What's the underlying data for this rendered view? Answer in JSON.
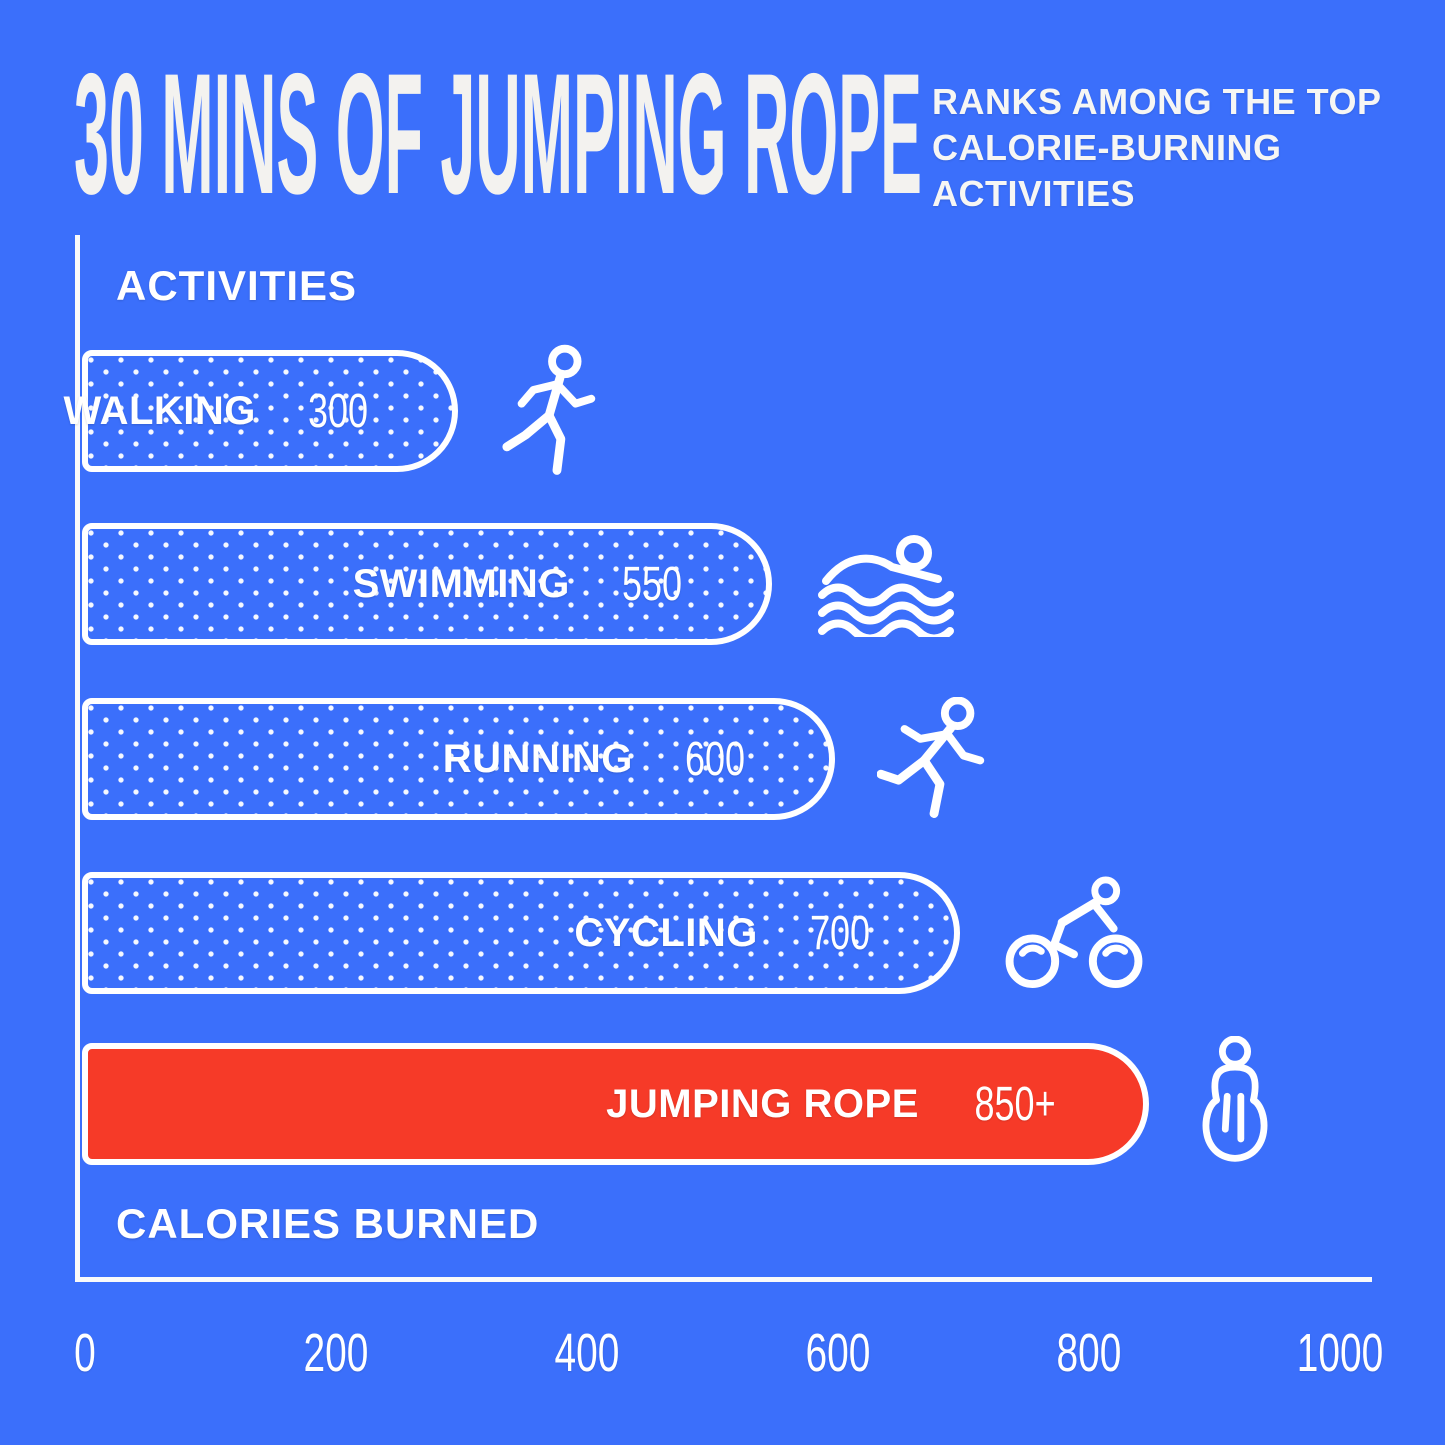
{
  "chart_data": {
    "type": "bar",
    "orientation": "horizontal",
    "title": "30 MINS OF JUMPING ROPE",
    "subtitle": "RANKS AMONG THE TOP CALORIE-BURNING ACTIVITIES",
    "subtitle_lines": [
      "RANKS AMONG THE TOP",
      "CALORIE-BURNING",
      "ACTIVITIES"
    ],
    "ylabel": "ACTIVITIES",
    "xlabel": "CALORIES BURNED",
    "xlim": [
      0,
      1000
    ],
    "xticks": [
      "0",
      "200",
      "400",
      "600",
      "800",
      "1000"
    ],
    "grid": false,
    "legend": false,
    "categories": [
      "WALKING",
      "SWIMMING",
      "RUNNING",
      "CYCLING",
      "JUMPING ROPE"
    ],
    "values": [
      300,
      550,
      600,
      700,
      850
    ],
    "bars": [
      {
        "label": "WALKING",
        "value": 300,
        "display_value": "300",
        "fill": "dotted",
        "icon": "walking-person-icon"
      },
      {
        "label": "SWIMMING",
        "value": 550,
        "display_value": "550",
        "fill": "dotted",
        "icon": "swimmer-icon"
      },
      {
        "label": "RUNNING",
        "value": 600,
        "display_value": "600",
        "fill": "dotted",
        "icon": "runner-icon"
      },
      {
        "label": "CYCLING",
        "value": 700,
        "display_value": "700",
        "fill": "dotted",
        "icon": "cyclist-icon"
      },
      {
        "label": "JUMPING ROPE",
        "value": 850,
        "display_value": "850+",
        "fill": "solid",
        "icon": "jump-rope-person-icon",
        "highlight": true
      }
    ],
    "colors": {
      "background": "#3B6FFB",
      "bar_outline": "#FFFFFF",
      "highlight_bar": "#F63A28",
      "text": "#FFFFFF"
    }
  }
}
